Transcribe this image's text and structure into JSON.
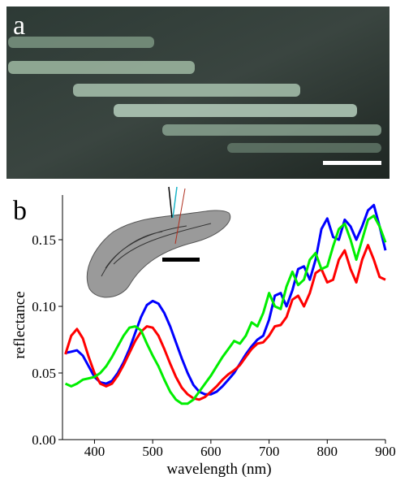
{
  "panel_a": {
    "label": "a"
  },
  "chart_data": {
    "type": "line",
    "panel_label": "b",
    "x_label": "wavelength (nm)",
    "y_label": "reflectance",
    "x": [
      350,
      360,
      370,
      380,
      390,
      400,
      410,
      420,
      430,
      440,
      450,
      460,
      470,
      480,
      490,
      500,
      510,
      520,
      530,
      540,
      550,
      560,
      570,
      580,
      590,
      600,
      610,
      620,
      630,
      640,
      650,
      660,
      670,
      680,
      690,
      700,
      710,
      720,
      730,
      740,
      750,
      760,
      770,
      780,
      790,
      800,
      810,
      820,
      830,
      840,
      850,
      860,
      870,
      880,
      890,
      900
    ],
    "series": [
      {
        "color": "#0000ff",
        "values": [
          0.065,
          0.066,
          0.067,
          0.063,
          0.055,
          0.047,
          0.043,
          0.042,
          0.044,
          0.05,
          0.058,
          0.068,
          0.08,
          0.092,
          0.101,
          0.104,
          0.102,
          0.095,
          0.085,
          0.073,
          0.061,
          0.05,
          0.041,
          0.036,
          0.034,
          0.034,
          0.036,
          0.04,
          0.045,
          0.05,
          0.057,
          0.064,
          0.07,
          0.075,
          0.078,
          0.09,
          0.108,
          0.11,
          0.1,
          0.112,
          0.128,
          0.13,
          0.12,
          0.135,
          0.158,
          0.166,
          0.152,
          0.15,
          0.165,
          0.16,
          0.15,
          0.16,
          0.172,
          0.176,
          0.16,
          0.142
        ]
      },
      {
        "color": "#ff0000",
        "values": [
          0.064,
          0.078,
          0.083,
          0.076,
          0.062,
          0.05,
          0.042,
          0.04,
          0.042,
          0.048,
          0.056,
          0.065,
          0.074,
          0.081,
          0.085,
          0.084,
          0.078,
          0.068,
          0.057,
          0.047,
          0.039,
          0.034,
          0.031,
          0.03,
          0.032,
          0.036,
          0.04,
          0.045,
          0.049,
          0.052,
          0.056,
          0.062,
          0.068,
          0.072,
          0.073,
          0.078,
          0.085,
          0.086,
          0.092,
          0.105,
          0.108,
          0.1,
          0.11,
          0.125,
          0.128,
          0.118,
          0.12,
          0.135,
          0.142,
          0.128,
          0.118,
          0.135,
          0.146,
          0.135,
          0.122,
          0.12
        ]
      },
      {
        "color": "#00ee00",
        "values": [
          0.042,
          0.04,
          0.042,
          0.045,
          0.046,
          0.047,
          0.05,
          0.055,
          0.062,
          0.07,
          0.078,
          0.084,
          0.085,
          0.082,
          0.072,
          0.063,
          0.055,
          0.045,
          0.036,
          0.03,
          0.027,
          0.027,
          0.03,
          0.036,
          0.042,
          0.048,
          0.055,
          0.062,
          0.068,
          0.074,
          0.072,
          0.078,
          0.088,
          0.085,
          0.095,
          0.11,
          0.1,
          0.098,
          0.115,
          0.126,
          0.116,
          0.12,
          0.135,
          0.14,
          0.128,
          0.13,
          0.145,
          0.158,
          0.162,
          0.15,
          0.135,
          0.15,
          0.165,
          0.168,
          0.16,
          0.148
        ]
      }
    ],
    "xlim": [
      345,
      900
    ],
    "ylim": [
      0,
      0.18
    ],
    "xticks": [
      400,
      500,
      600,
      700,
      800,
      900
    ],
    "yticks": [
      {
        "value": 0,
        "label": "0.00"
      },
      {
        "value": 0.05,
        "label": "0.05"
      },
      {
        "value": 0.1,
        "label": "0.10"
      },
      {
        "value": 0.15,
        "label": "0.15"
      }
    ],
    "grid": false
  }
}
